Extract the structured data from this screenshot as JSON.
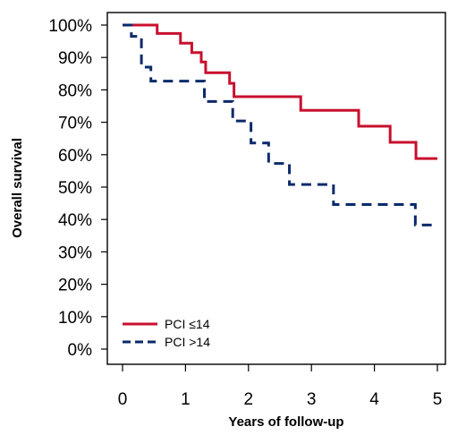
{
  "chart_data": {
    "type": "line",
    "xlabel": "Years of follow-up",
    "ylabel": "Overall survival",
    "xlim": [
      0,
      5
    ],
    "ylim": [
      0,
      1
    ],
    "x_ticks": [
      "0",
      "1",
      "2",
      "3",
      "4",
      "5"
    ],
    "y_ticks": [
      "0%",
      "10%",
      "20%",
      "30%",
      "40%",
      "50%",
      "60%",
      "70%",
      "80%",
      "90%",
      "100%"
    ],
    "step_function": true,
    "legend_position": "bottom-left",
    "grid": false,
    "series": [
      {
        "name": "PCI ≤14",
        "color": "#c8102e",
        "line_style": "solid",
        "x": [
          0,
          0.55,
          0.92,
          1.1,
          1.25,
          1.32,
          1.7,
          1.77,
          2.83,
          3.75,
          4.25,
          4.66,
          5.0
        ],
        "y": [
          1.0,
          0.974,
          0.944,
          0.915,
          0.886,
          0.853,
          0.82,
          0.779,
          0.737,
          0.688,
          0.638,
          0.588,
          0.588
        ]
      },
      {
        "name": "PCI >14",
        "color": "#0b2a6b",
        "line_style": "dashed",
        "x": [
          0,
          0.14,
          0.3,
          0.45,
          1.3,
          1.75,
          2.04,
          2.32,
          2.65,
          3.35,
          4.65,
          4.95
        ],
        "y": [
          1.0,
          0.965,
          0.87,
          0.827,
          0.764,
          0.704,
          0.636,
          0.573,
          0.508,
          0.446,
          0.383,
          0.383
        ]
      }
    ]
  }
}
